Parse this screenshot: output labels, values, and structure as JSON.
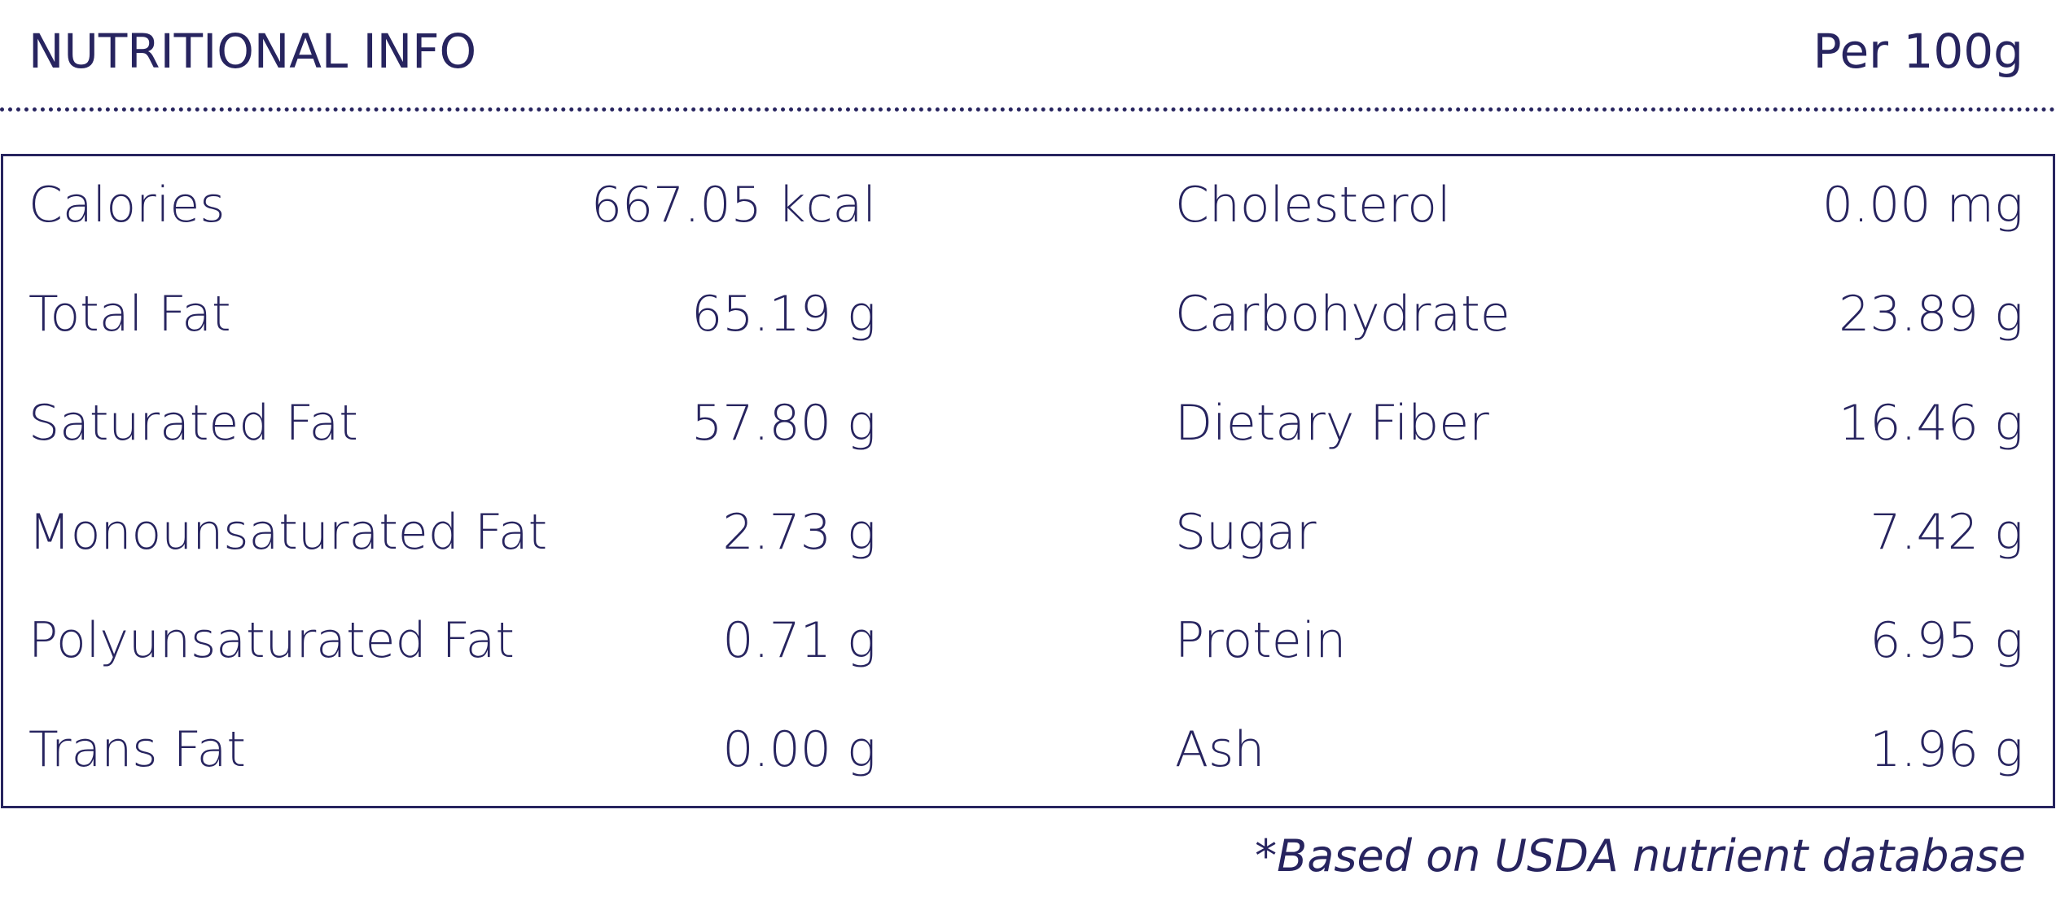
{
  "header": {
    "title": "NUTRITIONAL INFO",
    "subtitle": "Per 100g"
  },
  "table": {
    "rows": [
      [
        "Calories",
        "667.05 kcal",
        "Cholesterol",
        "0.00 mg"
      ],
      [
        "Total Fat",
        "65.19 g",
        "Carbohydrate",
        "23.89 g"
      ],
      [
        "Saturated Fat",
        "57.80 g",
        "Dietary Fiber",
        "16.46 g"
      ],
      [
        "Monounsaturated Fat",
        "2.73 g",
        "Sugar",
        "7.42 g"
      ],
      [
        "Polyunsaturated Fat",
        "0.71 g",
        "Protein",
        "6.95 g"
      ],
      [
        "Trans Fat",
        "0.00 g",
        "Ash",
        "1.96 g"
      ]
    ]
  },
  "footnote": "*Based on USDA nutrient database"
}
